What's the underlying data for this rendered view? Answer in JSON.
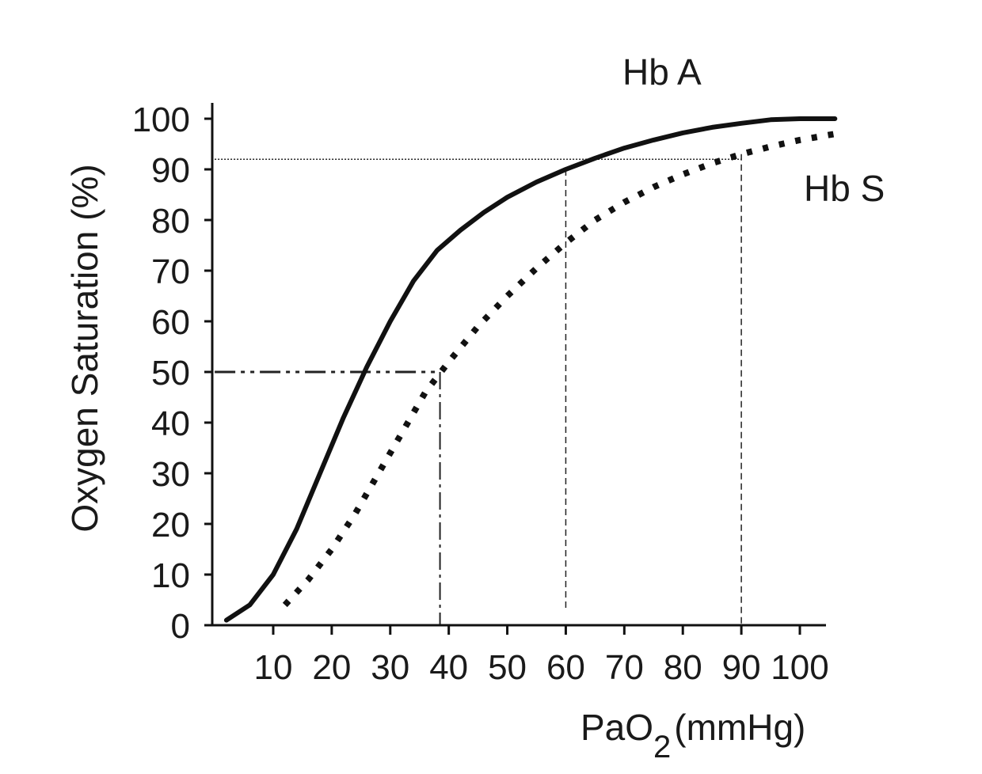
{
  "chart_data": {
    "type": "line",
    "xlabel_main": "PaO",
    "xlabel_sub": "2",
    "xlabel_unit": "(mmHg)",
    "ylabel": "Oxygen Saturation (%)",
    "xlim": [
      0,
      106
    ],
    "ylim": [
      0,
      100
    ],
    "x_ticks": [
      10,
      20,
      30,
      40,
      50,
      60,
      70,
      80,
      90,
      100
    ],
    "y_ticks": [
      0,
      10,
      20,
      30,
      40,
      50,
      60,
      70,
      80,
      90,
      100
    ],
    "grid": false,
    "series": [
      {
        "name": "Hb A",
        "style": "solid",
        "color": "#111111",
        "x": [
          2,
          6,
          10,
          14,
          18,
          22,
          26,
          30,
          34,
          38,
          42,
          46,
          50,
          55,
          60,
          65,
          70,
          75,
          80,
          85,
          90,
          95,
          100,
          106
        ],
        "y": [
          1,
          4,
          10,
          19,
          30,
          41,
          51,
          60,
          68,
          74,
          78,
          81.5,
          84.5,
          87.5,
          90,
          92.2,
          94.2,
          95.8,
          97.2,
          98.3,
          99.1,
          99.8,
          100,
          100
        ]
      },
      {
        "name": "Hb S",
        "style": "dotted",
        "color": "#111111",
        "x": [
          12,
          16,
          20,
          24,
          28,
          32,
          36,
          40,
          45,
          50,
          55,
          60,
          65,
          70,
          75,
          80,
          85,
          90,
          95,
          100,
          106
        ],
        "y": [
          4,
          9,
          15,
          22,
          30,
          38,
          46,
          52,
          59,
          65,
          70.5,
          75.5,
          80,
          83.5,
          86.5,
          89,
          91.2,
          93,
          94.5,
          95.8,
          97
        ]
      }
    ],
    "reference_lines": [
      {
        "style": "dash-dot-dot",
        "from": [
          0,
          50
        ],
        "to": [
          38.5,
          50
        ]
      },
      {
        "style": "dash-dot",
        "from": [
          38.5,
          50
        ],
        "to": [
          38.5,
          0
        ]
      },
      {
        "style": "dotted",
        "from": [
          0,
          92
        ],
        "to": [
          90,
          92
        ]
      },
      {
        "style": "dashed",
        "from": [
          60,
          90
        ],
        "to": [
          60,
          3
        ]
      },
      {
        "style": "dashed",
        "from": [
          90,
          93
        ],
        "to": [
          90,
          0
        ]
      }
    ]
  }
}
